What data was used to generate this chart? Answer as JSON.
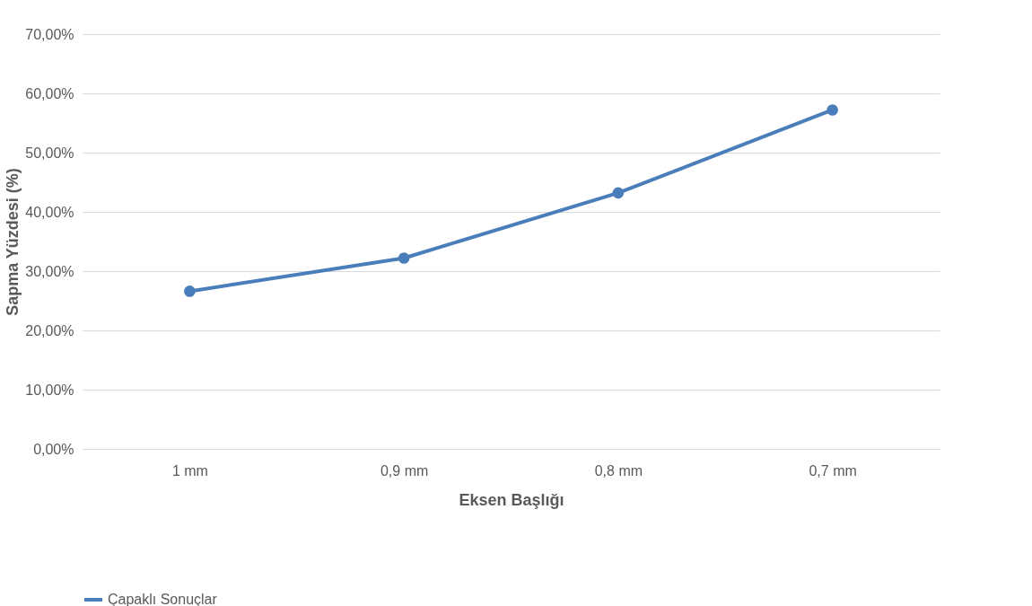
{
  "chart_data": {
    "type": "line",
    "xlabel": "Eksen Başlığı",
    "ylabel": "Sapma Yüzdesi (%)",
    "categories": [
      "1 mm",
      "0,9 mm",
      "0,8 mm",
      "0,7 mm"
    ],
    "series": [
      {
        "name": "Çapaklı Sonuçlar",
        "color": "#4a7ebb",
        "values": [
          26.6,
          32.2,
          43.2,
          57.2
        ]
      }
    ],
    "ylim": [
      0,
      70
    ],
    "yticks": [
      {
        "value": 0,
        "label": "0,00%"
      },
      {
        "value": 10,
        "label": "10,00%"
      },
      {
        "value": 20,
        "label": "20,00%"
      },
      {
        "value": 30,
        "label": "30,00%"
      },
      {
        "value": 40,
        "label": "40,00%"
      },
      {
        "value": 50,
        "label": "50,00%"
      },
      {
        "value": 60,
        "label": "60,00%"
      },
      {
        "value": 70,
        "label": "70,00%"
      }
    ],
    "grid": "y",
    "legend": "bottom",
    "marker": "circle",
    "line_style": "solid"
  }
}
